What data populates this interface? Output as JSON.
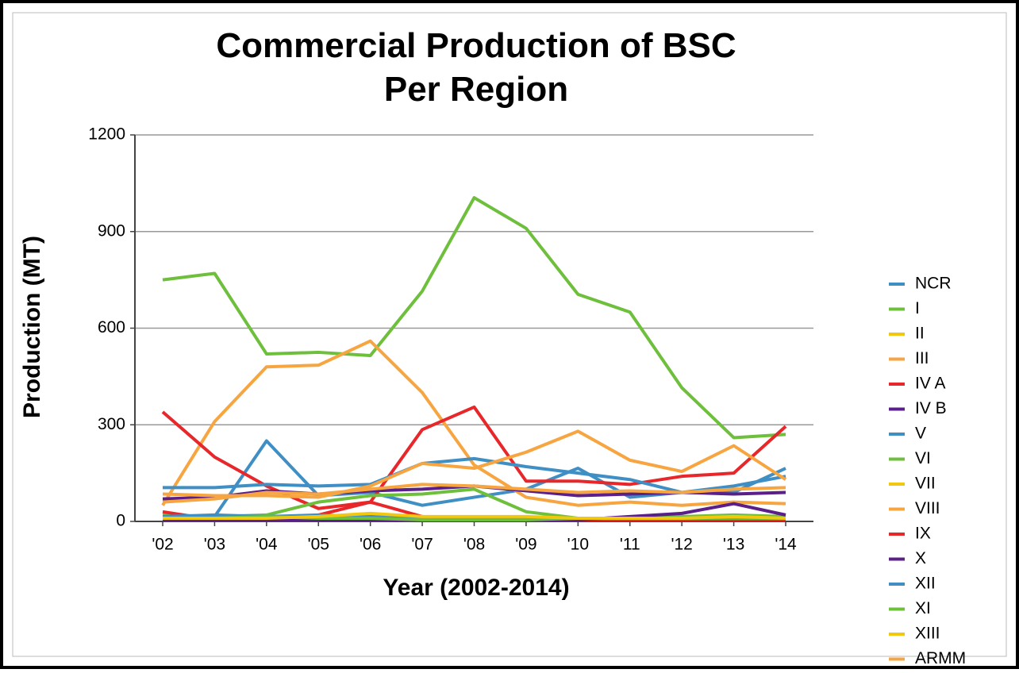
{
  "chart_data": {
    "type": "line",
    "title": "Commercial Production of BSC Per Region",
    "x_label": "Year (2002-2014)",
    "y_label": "Production (MT)",
    "categories": [
      "'02",
      "'03",
      "'04",
      "'05",
      "'06",
      "'07",
      "'08",
      "'09",
      "'10",
      "'11",
      "'12",
      "'13",
      "'14"
    ],
    "ylim": [
      0,
      1200
    ],
    "yticks": [
      0,
      300,
      600,
      900,
      1200
    ],
    "grid": true,
    "legend": "right",
    "series": [
      {
        "name": "NCR",
        "color": "#3f8fc5",
        "values": [
          10,
          15,
          250,
          80,
          90,
          50,
          75,
          100,
          165,
          75,
          90,
          90,
          165
        ]
      },
      {
        "name": "I",
        "color": "#6dbf3c",
        "values": [
          750,
          770,
          520,
          525,
          515,
          715,
          1005,
          910,
          705,
          650,
          415,
          260,
          270
        ]
      },
      {
        "name": "II",
        "color": "#f2c80f",
        "values": [
          5,
          5,
          5,
          5,
          5,
          5,
          5,
          5,
          5,
          5,
          5,
          5,
          5
        ]
      },
      {
        "name": "III",
        "color": "#f7a540",
        "values": [
          50,
          310,
          480,
          485,
          560,
          400,
          175,
          75,
          50,
          60,
          50,
          60,
          55
        ]
      },
      {
        "name": "IV A",
        "color": "#e8272a",
        "values": [
          340,
          200,
          110,
          40,
          60,
          285,
          355,
          125,
          125,
          115,
          140,
          150,
          295
        ]
      },
      {
        "name": "IV B",
        "color": "#5b1f8a",
        "values": [
          70,
          75,
          95,
          85,
          95,
          100,
          110,
          95,
          80,
          85,
          90,
          85,
          90
        ]
      },
      {
        "name": "V",
        "color": "#3f8fc5",
        "values": [
          105,
          105,
          115,
          110,
          115,
          180,
          195,
          170,
          150,
          130,
          90,
          110,
          140
        ]
      },
      {
        "name": "VI",
        "color": "#6dbf3c",
        "values": [
          20,
          15,
          20,
          60,
          80,
          85,
          100,
          30,
          10,
          10,
          15,
          20,
          15
        ]
      },
      {
        "name": "VII",
        "color": "#f2c80f",
        "values": [
          5,
          5,
          5,
          5,
          5,
          5,
          5,
          5,
          5,
          5,
          5,
          5,
          5
        ]
      },
      {
        "name": "VIII",
        "color": "#f7a540",
        "values": [
          85,
          80,
          80,
          75,
          110,
          180,
          165,
          215,
          280,
          190,
          155,
          235,
          130
        ]
      },
      {
        "name": "IX",
        "color": "#e8272a",
        "values": [
          30,
          5,
          5,
          20,
          60,
          15,
          5,
          5,
          5,
          5,
          5,
          5,
          5
        ]
      },
      {
        "name": "X",
        "color": "#5b1f8a",
        "values": [
          5,
          5,
          5,
          5,
          5,
          5,
          5,
          5,
          5,
          15,
          25,
          55,
          20
        ]
      },
      {
        "name": "XII",
        "color": "#3f8fc5",
        "values": [
          15,
          20,
          15,
          20,
          15,
          10,
          10,
          10,
          10,
          10,
          10,
          10,
          10
        ]
      },
      {
        "name": "XI",
        "color": "#6dbf3c",
        "values": [
          10,
          10,
          15,
          10,
          10,
          5,
          5,
          5,
          10,
          10,
          10,
          10,
          10
        ]
      },
      {
        "name": "XIII",
        "color": "#f2c80f",
        "values": [
          10,
          10,
          10,
          15,
          25,
          15,
          15,
          15,
          10,
          10,
          10,
          15,
          10
        ]
      },
      {
        "name": "ARMM",
        "color": "#f7a540",
        "values": [
          60,
          70,
          90,
          85,
          100,
          115,
          110,
          100,
          90,
          95,
          90,
          100,
          105
        ]
      }
    ]
  }
}
